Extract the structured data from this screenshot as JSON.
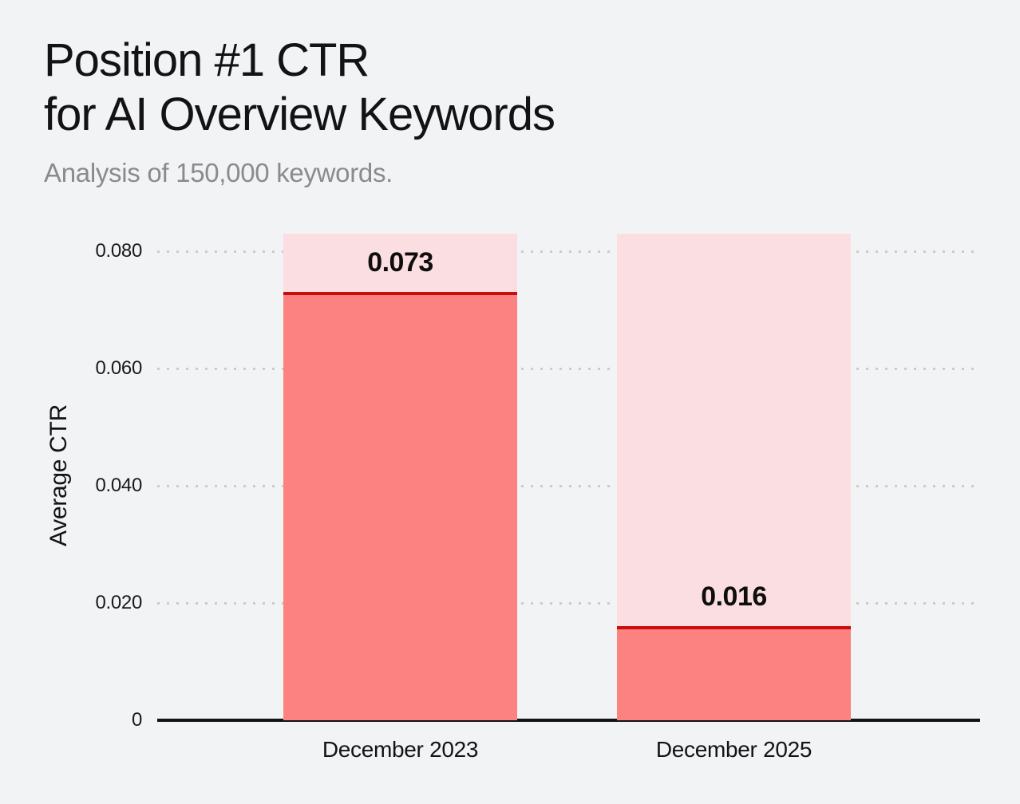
{
  "page": {
    "background": "#F2F3F5"
  },
  "chart_data": {
    "type": "bar",
    "title": "Position #1 CTR for AI Overview Keywords",
    "title_lines": [
      "Position #1 CTR",
      "for AI Overview Keywords"
    ],
    "subtitle": "Analysis of 150,000 keywords.",
    "ylabel": "Average CTR",
    "xlabel": "",
    "categories": [
      "December 2023",
      "December 2025"
    ],
    "values": [
      0.073,
      0.016
    ],
    "value_labels": [
      "0.073",
      "0.016"
    ],
    "ylim": [
      0,
      0.083
    ],
    "yticks": [
      {
        "value": 0,
        "label": "0"
      },
      {
        "value": 0.02,
        "label": "0.020"
      },
      {
        "value": 0.04,
        "label": "0.040"
      },
      {
        "value": 0.06,
        "label": "0.060"
      },
      {
        "value": 0.08,
        "label": "0.080"
      }
    ],
    "grid": "horizontal-dotted",
    "legend": "none",
    "bar_style": {
      "track_full_height": true,
      "fill_color": "#FC8282",
      "track_color": "#FBDEE1",
      "value_line_color": "#C90C0C"
    },
    "colors": {
      "background": "#F2F3F5",
      "grid_dot": "#CBCBCB",
      "axis_line": "#131313",
      "title_text": "#131313",
      "subtitle_text": "#8B8B8B",
      "tick_text": "#1A1A1A",
      "value_label_text": "#0E0E0E"
    }
  }
}
